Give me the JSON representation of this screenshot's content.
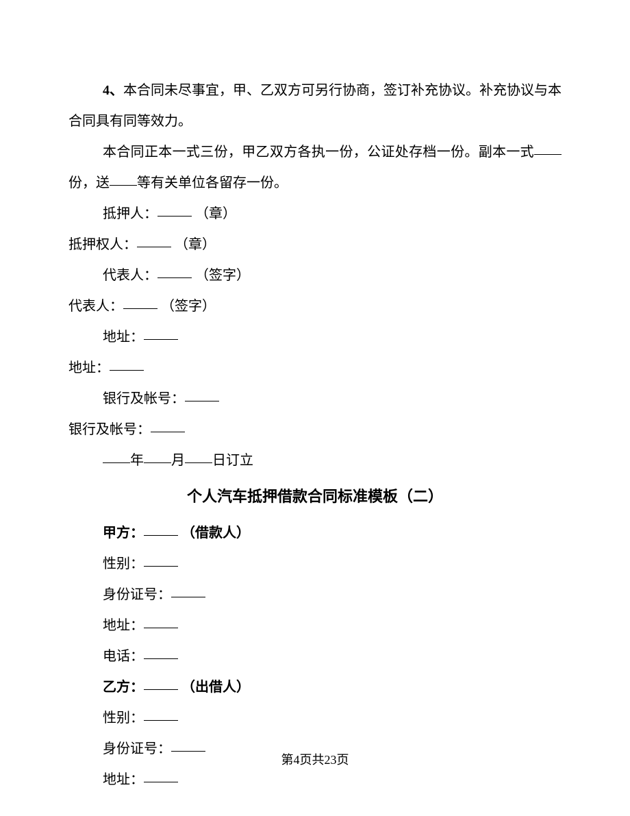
{
  "section1": {
    "para1_prefix": "4、",
    "para1_text": "本合同未尽事宜，甲、乙双方可另行协商，签订补充协议。补充协议与本合同具有同等效力。",
    "para2_part1": "本合同正本一式三份，甲乙双方各执一份，公证处存档一份。副本一式",
    "para2_part2": "份，送",
    "para2_part3": "等有关单位各留存一份。",
    "mortgagor_label": "抵押人：",
    "seal_suffix": "（章）",
    "mortgagee_label": "抵押权人：",
    "representative_label": "代表人：",
    "signature_suffix": "（签字）",
    "address_label": "地址：",
    "bank_label": "银行及帐号：",
    "date_year": "年",
    "date_month": "月",
    "date_day": "日订立"
  },
  "heading2": "个人汽车抵押借款合同标准模板（二）",
  "section2": {
    "party_a_label": "甲方：",
    "party_a_role": "（借款人）",
    "gender_label": "性别：",
    "id_label": "身份证号：",
    "address_label": "地址：",
    "phone_label": "电话：",
    "party_b_label": "乙方：",
    "party_b_role": "（出借人）"
  },
  "footer": "第4页共23页"
}
